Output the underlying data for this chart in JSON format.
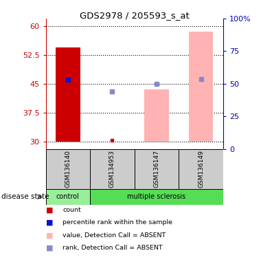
{
  "title": "GDS2978 / 205593_s_at",
  "samples": [
    "GSM136140",
    "GSM134953",
    "GSM136147",
    "GSM136149"
  ],
  "ylim_left": [
    28,
    62
  ],
  "yticks_left": [
    30,
    37.5,
    45,
    52.5,
    60
  ],
  "ytick_labels_left": [
    "30",
    "37.5",
    "45",
    "52.5",
    "60"
  ],
  "yticks_right": [
    0,
    25,
    50,
    75,
    100
  ],
  "ytick_labels_right": [
    "0",
    "25",
    "50",
    "75",
    "100%"
  ],
  "bar_values": [
    54.5,
    null,
    43.5,
    58.5
  ],
  "bar_colors": [
    "#cc0000",
    null,
    "#ffb3b3",
    "#ffb3b3"
  ],
  "bar_bottom": 30,
  "blue_dot_values": [
    46.0,
    null,
    45.0,
    46.2
  ],
  "blue_dot_colors": [
    "#1111cc",
    null,
    "#8888cc",
    "#8888cc"
  ],
  "rank_dot_value_gsm134953": 43.0,
  "small_red_dot_value": 30.3,
  "group_color_control": "#99ee99",
  "group_color_ms": "#55dd55",
  "sample_box_color": "#cccccc",
  "bar_width": 0.55,
  "left_axis_color": "#cc0000",
  "right_axis_color": "#0000bb",
  "legend_items": [
    {
      "color": "#cc0000",
      "label": "count"
    },
    {
      "color": "#1111cc",
      "label": "percentile rank within the sample"
    },
    {
      "color": "#ffb3b3",
      "label": "value, Detection Call = ABSENT"
    },
    {
      "color": "#8888cc",
      "label": "rank, Detection Call = ABSENT"
    }
  ]
}
